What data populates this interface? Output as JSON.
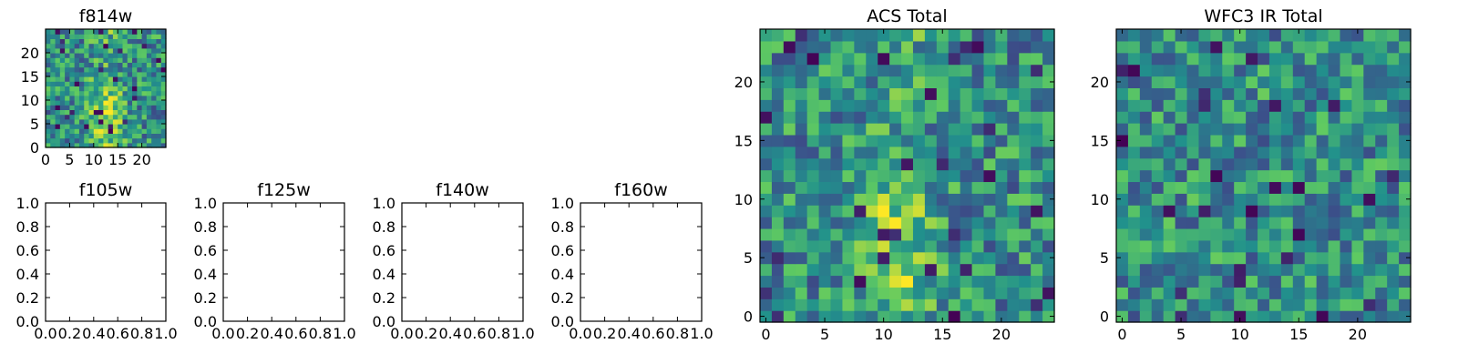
{
  "chart_data": [
    {
      "type": "heatmap",
      "title": "f814w",
      "xticks": [
        0,
        5,
        10,
        15,
        20
      ],
      "yticks": [
        0,
        5,
        10,
        15,
        20
      ],
      "xlim": [
        0,
        25
      ],
      "ylim": [
        0,
        25
      ],
      "grid": false,
      "colormap": "viridis",
      "pixel_grid": "25x25 noisy image, vertical bright band centred near x≈12"
    },
    {
      "type": "empty",
      "title": "f105w",
      "xticks": [
        "0.0",
        "0.2",
        "0.4",
        "0.6",
        "0.8",
        "1.0"
      ],
      "yticks": [
        "0.0",
        "0.2",
        "0.4",
        "0.6",
        "0.8",
        "1.0"
      ],
      "xlim": [
        0,
        1
      ],
      "ylim": [
        0,
        1
      ]
    },
    {
      "type": "empty",
      "title": "f125w",
      "xticks": [
        "0.0",
        "0.2",
        "0.4",
        "0.6",
        "0.8",
        "1.0"
      ],
      "yticks": [
        "0.0",
        "0.2",
        "0.4",
        "0.6",
        "0.8",
        "1.0"
      ],
      "xlim": [
        0,
        1
      ],
      "ylim": [
        0,
        1
      ]
    },
    {
      "type": "empty",
      "title": "f140w",
      "xticks": [
        "0.0",
        "0.2",
        "0.4",
        "0.6",
        "0.8",
        "1.0"
      ],
      "yticks": [
        "0.0",
        "0.2",
        "0.4",
        "0.6",
        "0.8",
        "1.0"
      ],
      "xlim": [
        0,
        1
      ],
      "ylim": [
        0,
        1
      ]
    },
    {
      "type": "empty",
      "title": "f160w",
      "xticks": [
        "0.0",
        "0.2",
        "0.4",
        "0.6",
        "0.8",
        "1.0"
      ],
      "yticks": [
        "0.0",
        "0.2",
        "0.4",
        "0.6",
        "0.8",
        "1.0"
      ],
      "xlim": [
        0,
        1
      ],
      "ylim": [
        0,
        1
      ]
    },
    {
      "type": "heatmap",
      "title": "ACS Total",
      "xticks": [
        0,
        5,
        10,
        15,
        20
      ],
      "yticks": [
        0,
        5,
        10,
        15,
        20
      ],
      "xlim": [
        -0.5,
        24.5
      ],
      "ylim": [
        -0.5,
        24.5
      ],
      "grid": false,
      "colormap": "viridis",
      "pixel_grid": "25x25 noisy image, vertical bright band centred near x≈11"
    },
    {
      "type": "heatmap",
      "title": "WFC3 IR Total",
      "xticks": [
        0,
        5,
        10,
        15,
        20
      ],
      "yticks": [
        0,
        5,
        10,
        15,
        20
      ],
      "xlim": [
        -0.5,
        24.5
      ],
      "ylim": [
        -0.5,
        24.5
      ],
      "grid": false,
      "colormap": "viridis",
      "pixel_grid": "25x25 noisy image, no clear structure"
    }
  ]
}
